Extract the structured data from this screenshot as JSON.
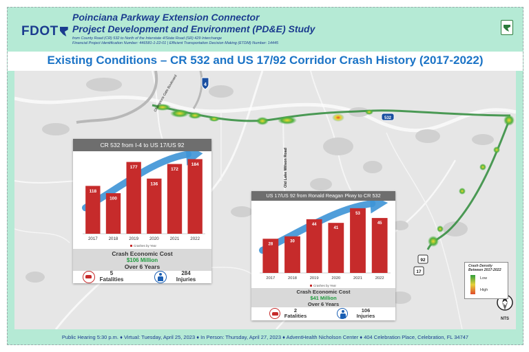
{
  "header": {
    "logo": "FDOT",
    "title_line1": "Poinciana Parkway Extension Connector",
    "title_line2": "Project Development and Environment (PD&E) Study",
    "subtitle_line1": "from County Road (CR) 532 to North of the Interstate 4/State Road (SR) 429 Interchange",
    "subtitle_line2": "Financial Project Identification Number: 446581-1-22-01 | Efficient Transportation Decision Making (ETDM) Number: 14445"
  },
  "banner": {
    "title": "Existing Conditions – CR 532 and US 17/92 Corridor Crash History (2017-2022)"
  },
  "map_labels": {
    "i4_shield": "4",
    "cr532_shield": "532",
    "us92_shield": "92",
    "us17_shield": "17",
    "champions_gate_blvd": "Champions Gate Boulevard",
    "old_lake_wilson_rd": "Old Lake Wilson Road",
    "north_label": "N",
    "nts": "NTS"
  },
  "legend": {
    "title_line1": "Crash Density",
    "title_line2": "Between 2017-2022",
    "low": "Low",
    "high": "High"
  },
  "colors": {
    "bar": "#c62b2b",
    "arrow": "#3d93d6",
    "brand": "#1b3c8f",
    "accent": "#1a73c6",
    "frame": "#b5ead5"
  },
  "panel1": {
    "header": "CR 532 from I-4 to US 17/US 92",
    "legend_label": "Crashes by Year",
    "cost_title": "Crash Economic Cost",
    "cost_amount": "$106 Million",
    "cost_period": "Over 6 Years",
    "fatalities_count": "5",
    "fatalities_label": "Fatalities",
    "injuries_count": "284",
    "injuries_label": "Injuries"
  },
  "panel2": {
    "header": "US 17/US 92 from Ronald Reagan Pkwy to CR 532",
    "legend_label": "Crashes by Year",
    "cost_title": "Crash Economic Cost",
    "cost_amount": "$41 Million",
    "cost_period": "Over 6 Years",
    "fatalities_count": "2",
    "fatalities_label": "Fatalities",
    "injuries_count": "106",
    "injuries_label": "Injuries"
  },
  "footer": {
    "text": "Public Hearing 5:30 p.m. ♦ Virtual: Tuesday, April 25, 2023 ♦ In Person: Thursday, April 27, 2023 ♦  AdventHealth Nicholson Center ♦ 404 Celebration Place, Celebration, FL 34747"
  },
  "chart_data": [
    {
      "type": "bar",
      "title": "CR 532 from I-4 to US 17/US 92",
      "categories": [
        "2017",
        "2018",
        "2019",
        "2020",
        "2021",
        "2022"
      ],
      "series": [
        {
          "name": "Crashes by Year",
          "values": [
            118,
            100,
            177,
            136,
            172,
            184
          ]
        }
      ],
      "ylim": [
        0,
        200
      ]
    },
    {
      "type": "bar",
      "title": "US 17/US 92 from Ronald Reagan Pkwy to CR 532",
      "categories": [
        "2017",
        "2018",
        "2019",
        "2020",
        "2021",
        "2022"
      ],
      "series": [
        {
          "name": "Crashes by Year",
          "values": [
            28,
            30,
            44,
            41,
            53,
            45
          ]
        }
      ],
      "ylim": [
        0,
        58
      ]
    }
  ]
}
